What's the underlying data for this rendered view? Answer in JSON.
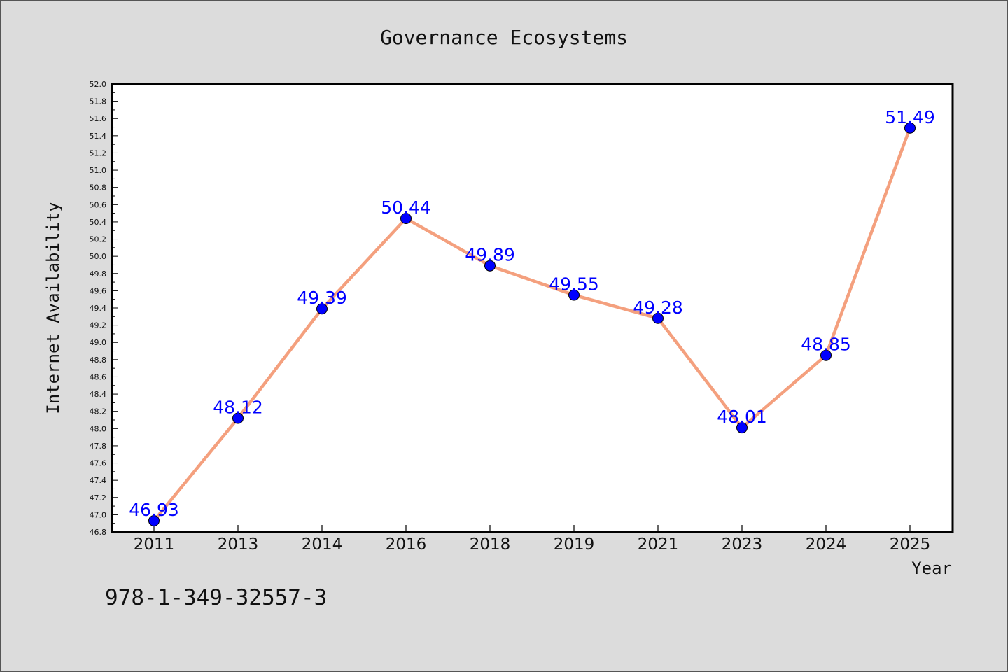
{
  "chart_data": {
    "type": "line",
    "title": "Governance Ecosystems",
    "xlabel": "Year",
    "ylabel": "Internet Availability",
    "categories": [
      "2011",
      "2013",
      "2014",
      "2016",
      "2018",
      "2019",
      "2021",
      "2023",
      "2024",
      "2025"
    ],
    "series": [
      {
        "values": [
          46.93,
          48.12,
          49.39,
          50.44,
          49.89,
          49.55,
          49.28,
          48.01,
          48.85,
          51.49
        ],
        "data_labels": [
          "46.93",
          "48.12",
          "49.39",
          "50.44",
          "49.89",
          "49.55",
          "49.28",
          "48.01",
          "48.85",
          "51.49"
        ],
        "line_color": "#f4a07e",
        "marker_color": "#0000ff"
      }
    ],
    "ylim": [
      46.8,
      52.0
    ],
    "yticks": [
      "46.8",
      "47.0",
      "47.2",
      "47.4",
      "47.6",
      "47.8",
      "48.0",
      "48.2",
      "48.4",
      "48.6",
      "48.8",
      "49.0",
      "49.2",
      "49.4",
      "49.6",
      "49.8",
      "50.0",
      "50.2",
      "50.4",
      "50.6",
      "50.8",
      "51.0",
      "51.2",
      "51.4",
      "51.6",
      "51.8",
      "52.0"
    ],
    "grid": false,
    "legend": "none",
    "background": "#dcdcdc",
    "plot_background": "#ffffff"
  },
  "footer": {
    "isbn": "978-1-349-32557-3"
  }
}
